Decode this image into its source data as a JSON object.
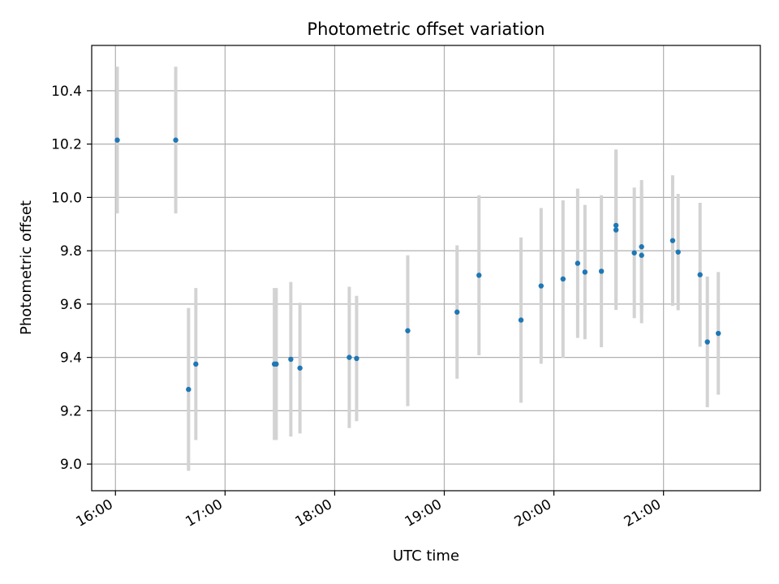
{
  "chart_data": {
    "type": "scatter",
    "title": "Photometric offset variation",
    "xlabel": "UTC time",
    "ylabel": "Photometric offset",
    "xlim": [
      "15:47",
      "21:53"
    ],
    "ylim": [
      8.9,
      10.57
    ],
    "xticks": [
      "16:00",
      "17:00",
      "18:00",
      "19:00",
      "20:00",
      "21:00"
    ],
    "yticks": [
      9.0,
      9.2,
      9.4,
      9.6,
      9.8,
      10.0,
      10.2,
      10.4
    ],
    "grid": true,
    "colors": {
      "point": "#1f77b4",
      "errorbar": "#d3d3d3",
      "grid": "#b0b0b0"
    },
    "points": [
      {
        "x": "16:01",
        "y": 10.215,
        "err": 0.275
      },
      {
        "x": "16:33",
        "y": 10.215,
        "err": 0.275
      },
      {
        "x": "16:40",
        "y": 9.28,
        "err": 0.305
      },
      {
        "x": "16:44",
        "y": 9.375,
        "err": 0.285
      },
      {
        "x": "17:27",
        "y": 9.375,
        "err": 0.285
      },
      {
        "x": "17:28",
        "y": 9.375,
        "err": 0.285
      },
      {
        "x": "17:36",
        "y": 9.393,
        "err": 0.29
      },
      {
        "x": "17:41",
        "y": 9.36,
        "err": 0.245
      },
      {
        "x": "18:08",
        "y": 9.4,
        "err": 0.265
      },
      {
        "x": "18:12",
        "y": 9.396,
        "err": 0.235
      },
      {
        "x": "18:40",
        "y": 9.5,
        "err": 0.283
      },
      {
        "x": "19:07",
        "y": 9.57,
        "err": 0.25
      },
      {
        "x": "19:19",
        "y": 9.708,
        "err": 0.3
      },
      {
        "x": "19:42",
        "y": 9.54,
        "err": 0.31
      },
      {
        "x": "19:53",
        "y": 9.668,
        "err": 0.292
      },
      {
        "x": "20:05",
        "y": 9.694,
        "err": 0.295
      },
      {
        "x": "20:13",
        "y": 9.753,
        "err": 0.28
      },
      {
        "x": "20:17",
        "y": 9.72,
        "err": 0.252
      },
      {
        "x": "20:26",
        "y": 9.723,
        "err": 0.285
      },
      {
        "x": "20:34",
        "y": 9.895,
        "err": 0.285
      },
      {
        "x": "20:34",
        "y": 9.878,
        "err": 0.3
      },
      {
        "x": "20:44",
        "y": 9.792,
        "err": 0.245
      },
      {
        "x": "20:48",
        "y": 9.815,
        "err": 0.25
      },
      {
        "x": "20:48",
        "y": 9.783,
        "err": 0.255
      },
      {
        "x": "21:05",
        "y": 9.838,
        "err": 0.245
      },
      {
        "x": "21:08",
        "y": 9.795,
        "err": 0.218
      },
      {
        "x": "21:20",
        "y": 9.71,
        "err": 0.27
      },
      {
        "x": "21:24",
        "y": 9.458,
        "err": 0.245
      },
      {
        "x": "21:30",
        "y": 9.49,
        "err": 0.23
      }
    ]
  }
}
